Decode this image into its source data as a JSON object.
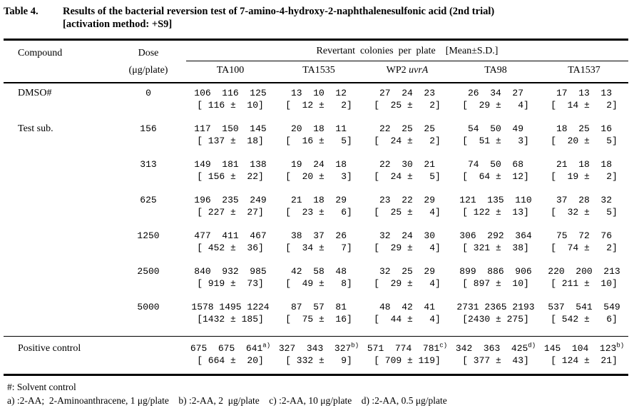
{
  "title": {
    "label": "Table 4.",
    "text": "Results of the bacterial reversion test of 7-amino-4-hydroxy-2-naphthalenesulfonic acid (2nd trial)",
    "method": "[activation method: +S9]"
  },
  "table": {
    "col_compound": "Compound",
    "col_dose": "Dose",
    "col_dose_unit": "(μg/plate)",
    "col_group": "Revertant  colonies  per  plate    [Mean±S.D.]",
    "strains": [
      {
        "pre": "TA100",
        "it": ""
      },
      {
        "pre": "TA1535",
        "it": ""
      },
      {
        "pre": "WP2 ",
        "it": "uvrA"
      },
      {
        "pre": "TA98",
        "it": ""
      },
      {
        "pre": "TA1537",
        "it": ""
      }
    ],
    "rows": [
      {
        "compound": "DMSO#",
        "dose": "0",
        "separator": false,
        "cells": [
          {
            "counts": [
              106,
              116,
              125
            ],
            "mean": 116,
            "sd": 10
          },
          {
            "counts": [
              13,
              10,
              12
            ],
            "mean": 12,
            "sd": 2
          },
          {
            "counts": [
              27,
              24,
              23
            ],
            "mean": 25,
            "sd": 2
          },
          {
            "counts": [
              26,
              34,
              27
            ],
            "mean": 29,
            "sd": 4
          },
          {
            "counts": [
              17,
              13,
              13
            ],
            "mean": 14,
            "sd": 2
          }
        ]
      },
      {
        "compound": "Test sub.",
        "dose": "156",
        "separator": false,
        "cells": [
          {
            "counts": [
              117,
              150,
              145
            ],
            "mean": 137,
            "sd": 18
          },
          {
            "counts": [
              20,
              18,
              11
            ],
            "mean": 16,
            "sd": 5
          },
          {
            "counts": [
              22,
              25,
              25
            ],
            "mean": 24,
            "sd": 2
          },
          {
            "counts": [
              54,
              50,
              49
            ],
            "mean": 51,
            "sd": 3
          },
          {
            "counts": [
              18,
              25,
              16
            ],
            "mean": 20,
            "sd": 5
          }
        ]
      },
      {
        "compound": "",
        "dose": "313",
        "separator": false,
        "cells": [
          {
            "counts": [
              149,
              181,
              138
            ],
            "mean": 156,
            "sd": 22
          },
          {
            "counts": [
              19,
              24,
              18
            ],
            "mean": 20,
            "sd": 3
          },
          {
            "counts": [
              22,
              30,
              21
            ],
            "mean": 24,
            "sd": 5
          },
          {
            "counts": [
              74,
              50,
              68
            ],
            "mean": 64,
            "sd": 12
          },
          {
            "counts": [
              21,
              18,
              18
            ],
            "mean": 19,
            "sd": 2
          }
        ]
      },
      {
        "compound": "",
        "dose": "625",
        "separator": false,
        "cells": [
          {
            "counts": [
              196,
              235,
              249
            ],
            "mean": 227,
            "sd": 27
          },
          {
            "counts": [
              21,
              18,
              29
            ],
            "mean": 23,
            "sd": 6
          },
          {
            "counts": [
              23,
              22,
              29
            ],
            "mean": 25,
            "sd": 4
          },
          {
            "counts": [
              121,
              135,
              110
            ],
            "mean": 122,
            "sd": 13
          },
          {
            "counts": [
              37,
              28,
              32
            ],
            "mean": 32,
            "sd": 5
          }
        ]
      },
      {
        "compound": "",
        "dose": "1250",
        "separator": false,
        "cells": [
          {
            "counts": [
              477,
              411,
              467
            ],
            "mean": 452,
            "sd": 36
          },
          {
            "counts": [
              38,
              37,
              26
            ],
            "mean": 34,
            "sd": 7
          },
          {
            "counts": [
              32,
              24,
              30
            ],
            "mean": 29,
            "sd": 4
          },
          {
            "counts": [
              306,
              292,
              364
            ],
            "mean": 321,
            "sd": 38
          },
          {
            "counts": [
              75,
              72,
              76
            ],
            "mean": 74,
            "sd": 2
          }
        ]
      },
      {
        "compound": "",
        "dose": "2500",
        "separator": false,
        "cells": [
          {
            "counts": [
              840,
              932,
              985
            ],
            "mean": 919,
            "sd": 73
          },
          {
            "counts": [
              42,
              58,
              48
            ],
            "mean": 49,
            "sd": 8
          },
          {
            "counts": [
              32,
              25,
              29
            ],
            "mean": 29,
            "sd": 4
          },
          {
            "counts": [
              899,
              886,
              906
            ],
            "mean": 897,
            "sd": 10
          },
          {
            "counts": [
              220,
              200,
              213
            ],
            "mean": 211,
            "sd": 10
          }
        ]
      },
      {
        "compound": "",
        "dose": "5000",
        "separator": false,
        "cells": [
          {
            "counts": [
              1578,
              1495,
              1224
            ],
            "mean": 1432,
            "sd": 185
          },
          {
            "counts": [
              87,
              57,
              81
            ],
            "mean": 75,
            "sd": 16
          },
          {
            "counts": [
              48,
              42,
              41
            ],
            "mean": 44,
            "sd": 4
          },
          {
            "counts": [
              2731,
              2365,
              2193
            ],
            "mean": 2430,
            "sd": 275
          },
          {
            "counts": [
              537,
              541,
              549
            ],
            "mean": 542,
            "sd": 6
          }
        ]
      },
      {
        "compound": "Positive control",
        "dose": "",
        "separator": true,
        "cells": [
          {
            "counts": [
              675,
              675,
              641
            ],
            "note": "a)",
            "mean": 664,
            "sd": 20
          },
          {
            "counts": [
              327,
              343,
              327
            ],
            "note": "b)",
            "mean": 332,
            "sd": 9
          },
          {
            "counts": [
              571,
              774,
              781
            ],
            "note": "c)",
            "mean": 709,
            "sd": 119
          },
          {
            "counts": [
              342,
              363,
              425
            ],
            "note": "d)",
            "mean": 377,
            "sd": 43
          },
          {
            "counts": [
              145,
              104,
              123
            ],
            "note": "b)",
            "mean": 124,
            "sd": 21
          }
        ]
      }
    ]
  },
  "footnotes": [
    "#: Solvent control",
    "a) :2-AA;  2-Aminoanthracene, 1 μg/plate    b) :2-AA, 2  μg/plate    c) :2-AA, 10 μg/plate    d) :2-AA, 0.5 μg/plate"
  ]
}
